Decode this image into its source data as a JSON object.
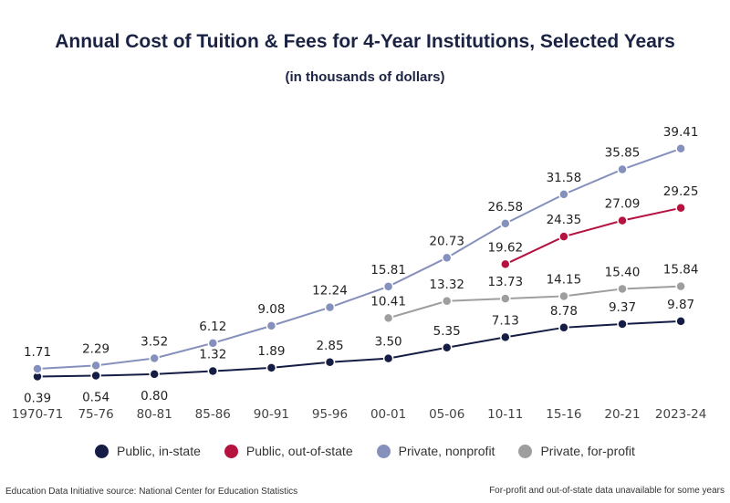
{
  "header": {
    "title": "Annual Cost of Tuition & Fees for 4-Year Institutions, Selected Years",
    "subtitle": "(in thousands of dollars)"
  },
  "footer": {
    "source": "Education Data Initiative source: National Center for Education Statistics",
    "note": "For-profit and out-of-state data unavailable for some years"
  },
  "chart_data": {
    "type": "line",
    "title": "Annual Cost of Tuition & Fees for 4-Year Institutions, Selected Years",
    "subtitle": "(in thousands of dollars)",
    "xlabel": "",
    "ylabel": "",
    "categories": [
      "1970-71",
      "75-76",
      "80-81",
      "85-86",
      "90-91",
      "95-96",
      "00-01",
      "05-06",
      "10-11",
      "15-16",
      "20-21",
      "2023-24"
    ],
    "ylim": [
      0,
      42
    ],
    "grid": false,
    "legend": "bottom",
    "series": [
      {
        "name": "Public, in-state",
        "color": "#161d45",
        "values": [
          0.39,
          0.54,
          0.8,
          1.32,
          1.89,
          2.85,
          3.5,
          5.35,
          7.13,
          8.78,
          9.37,
          9.87
        ],
        "labels": [
          "0.39",
          "0.54",
          "0.80",
          "1.32",
          "1.89",
          "2.85",
          "3.50",
          "5.35",
          "7.13",
          "8.78",
          "9.37",
          "9.87"
        ],
        "label_pos": [
          "below",
          "below",
          "below",
          "above",
          "above",
          "above",
          "above",
          "above",
          "above",
          "above",
          "above",
          "above"
        ]
      },
      {
        "name": "Public, out-of-state",
        "color": "#b5123f",
        "values": [
          null,
          null,
          null,
          null,
          null,
          null,
          null,
          null,
          19.62,
          24.35,
          27.09,
          29.25
        ],
        "labels": [
          null,
          null,
          null,
          null,
          null,
          null,
          null,
          null,
          "19.62",
          "24.35",
          "27.09",
          "29.25"
        ],
        "label_pos": [
          "above",
          "above",
          "above",
          "above",
          "above",
          "above",
          "above",
          "above",
          "above",
          "above",
          "above",
          "above"
        ]
      },
      {
        "name": "Private, nonprofit",
        "color": "#8590bd",
        "values": [
          1.71,
          2.29,
          3.52,
          6.12,
          9.08,
          12.24,
          15.81,
          20.73,
          26.58,
          31.58,
          35.85,
          39.41
        ],
        "labels": [
          "1.71",
          "2.29",
          "3.52",
          "6.12",
          "9.08",
          "12.24",
          "15.81",
          "20.73",
          "26.58",
          "31.58",
          "35.85",
          "39.41"
        ],
        "label_pos": [
          "above",
          "above",
          "above",
          "above",
          "above",
          "above",
          "above",
          "above",
          "above",
          "above",
          "above",
          "above"
        ]
      },
      {
        "name": "Private, for-profit",
        "color": "#9e9e9e",
        "values": [
          null,
          null,
          null,
          null,
          null,
          null,
          10.41,
          13.32,
          13.73,
          14.15,
          15.4,
          15.84
        ],
        "labels": [
          null,
          null,
          null,
          null,
          null,
          null,
          "10.41",
          "13.32",
          "13.73",
          "14.15",
          "15.40",
          "15.84"
        ],
        "label_pos": [
          "above",
          "above",
          "above",
          "above",
          "above",
          "above",
          "above",
          "above",
          "above",
          "above",
          "above",
          "above"
        ]
      }
    ]
  }
}
